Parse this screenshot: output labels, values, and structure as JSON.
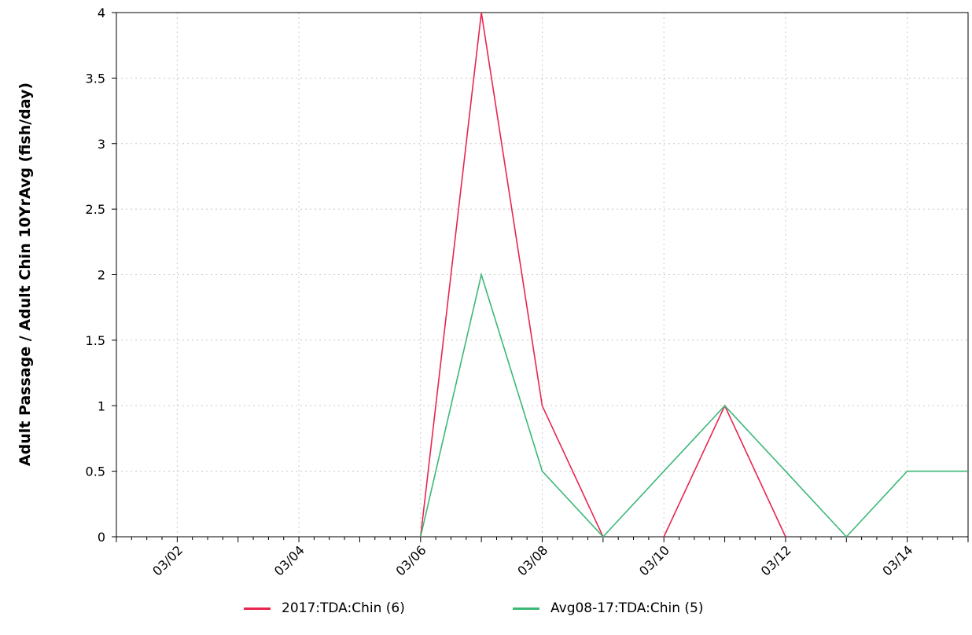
{
  "chart_data": {
    "type": "line",
    "title": "",
    "xlabel": "",
    "ylabel": "Adult Passage / Adult Chin 10YrAvg (fish/day)",
    "x_domain": [
      "03/01",
      "03/15"
    ],
    "xticks": [
      "03/02",
      "03/04",
      "03/06",
      "03/08",
      "03/10",
      "03/12",
      "03/14"
    ],
    "ylim": [
      0,
      4
    ],
    "yticks": [
      "0",
      "0.5",
      "1",
      "1.5",
      "2",
      "2.5",
      "3",
      "3.5",
      "4"
    ],
    "grid": true,
    "legend_position": "bottom",
    "series": [
      {
        "name": "2017:TDA:Chin (6)",
        "color": "#e8254f",
        "segments": [
          [
            {
              "x": "03/06",
              "y": 0
            },
            {
              "x": "03/07",
              "y": 4
            },
            {
              "x": "03/08",
              "y": 1
            },
            {
              "x": "03/09",
              "y": 0
            }
          ],
          [
            {
              "x": "03/10",
              "y": 0
            },
            {
              "x": "03/11",
              "y": 1
            },
            {
              "x": "03/12",
              "y": 0
            }
          ]
        ]
      },
      {
        "name": "Avg08-17:TDA:Chin (5)",
        "color": "#3cb878",
        "segments": [
          [
            {
              "x": "03/06",
              "y": 0
            },
            {
              "x": "03/07",
              "y": 2
            },
            {
              "x": "03/08",
              "y": 0.5
            },
            {
              "x": "03/09",
              "y": 0
            },
            {
              "x": "03/10",
              "y": 0.5
            },
            {
              "x": "03/11",
              "y": 1
            },
            {
              "x": "03/12",
              "y": 0.5
            },
            {
              "x": "03/13",
              "y": 0
            },
            {
              "x": "03/14",
              "y": 0.5
            },
            {
              "x": "03/15",
              "y": 0.5
            }
          ]
        ]
      }
    ]
  }
}
